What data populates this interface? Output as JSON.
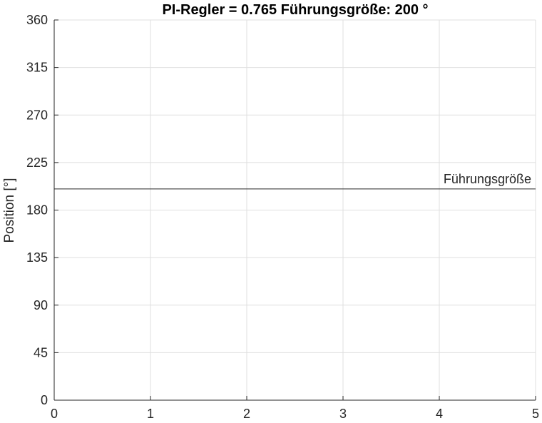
{
  "chart_data": {
    "type": "line",
    "title": "PI-Regler =  0.765     Führungsgröße:  200 °",
    "xlabel": "",
    "ylabel": "Position [°]",
    "xlim": [
      0,
      5
    ],
    "ylim": [
      0,
      360
    ],
    "xticks": [
      0,
      1,
      2,
      3,
      4,
      5
    ],
    "yticks": [
      0,
      45,
      90,
      135,
      180,
      225,
      270,
      315,
      360
    ],
    "grid": true,
    "reference_line": {
      "y": 200,
      "label": "Führungsgröße"
    },
    "series": []
  },
  "colors": {
    "axis": "#262626",
    "grid": "#dfdfdf",
    "reference_line": "#262626",
    "background": "#ffffff"
  }
}
